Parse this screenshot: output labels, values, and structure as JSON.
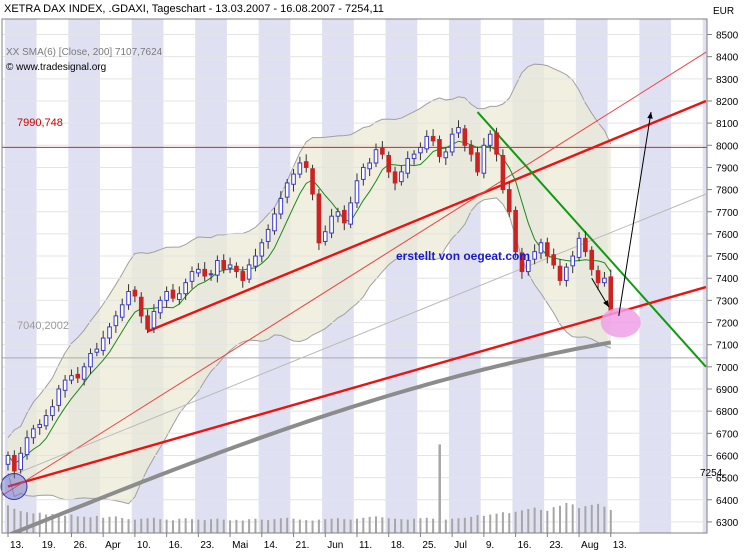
{
  "header": {
    "title": "XETRA DAX INDEX, .GDAXI, Tageschart - 13.03.2007 - 16.08.2007 - 7254,11",
    "indicator": "XX SMA(6) [Close, 200] 7107,7624",
    "copyright": "© www.tradesignal.org"
  },
  "axis": {
    "currency": "EUR",
    "y_ticks": [
      6300,
      6400,
      6500,
      6600,
      6700,
      6800,
      6900,
      7000,
      7100,
      7200,
      7300,
      7400,
      7500,
      7600,
      7700,
      7800,
      7900,
      8000,
      8100,
      8200,
      8300,
      8400,
      8500
    ],
    "y_tick_labels": [
      "6300",
      "6400",
      "6500",
      "6600",
      "6700",
      "6800",
      "6900",
      "7000",
      "7100",
      "7200",
      "7300",
      "7400",
      "7500",
      "7600",
      "7700",
      "7800",
      "7900",
      "8000",
      "8100",
      "8200",
      "8300",
      "8400",
      "8500"
    ],
    "ylim": [
      6250,
      8570
    ],
    "x_labels": [
      "13.",
      "19.",
      "26.",
      "Apr",
      "10.",
      "16.",
      "23.",
      "Mai",
      "14.",
      "21.",
      "Jun",
      "11.",
      "18.",
      "25.",
      "Jul",
      "9.",
      "16.",
      "23.",
      "Aug",
      "13."
    ],
    "price_tag": "7254,"
  },
  "annotations": {
    "hline_upper_label": "7990,748",
    "hline_upper_value": 7990.748,
    "hline_lower_label": "7040,2002",
    "hline_lower_value": 7040.2002,
    "watermark": "erstellt von oegeat.com"
  },
  "colors": {
    "background": "#ffffff",
    "stripe": "#dfe1f2",
    "bollinger_fill": "#ece9d6",
    "bollinger_line": "#a0a0a0",
    "sma_short": "#1a8a1a",
    "sma_long": "#8c8c8c",
    "candle_up": "#3a3acc",
    "candle_down": "#cc2222",
    "trend_red": "#ee1111",
    "trend_green": "#119911",
    "thin_red": "#ee4444",
    "thin_gray": "#bbbbbb",
    "volume": "#a6a6a6",
    "circle_blue": "#6666cc",
    "ellipse_pink": "#f0a0e8",
    "watermark": "#1a1acc"
  },
  "chart_data": {
    "type": "candlestick",
    "title": "XETRA DAX INDEX, .GDAXI, Tageschart - 13.03.2007 - 16.08.2007 - 7254,11",
    "ylabel": "EUR",
    "close": [
      6600,
      6530,
      6610,
      6680,
      6720,
      6740,
      6780,
      6820,
      6900,
      6940,
      6960,
      6950,
      7000,
      7060,
      7080,
      7130,
      7180,
      7230,
      7280,
      7340,
      7320,
      7230,
      7170,
      7250,
      7300,
      7340,
      7310,
      7330,
      7380,
      7430,
      7440,
      7410,
      7420,
      7480,
      7440,
      7460,
      7430,
      7390,
      7460,
      7500,
      7560,
      7620,
      7690,
      7760,
      7830,
      7870,
      7920,
      7900,
      7780,
      7560,
      7610,
      7680,
      7700,
      7650,
      7740,
      7840,
      7900,
      7920,
      7980,
      7960,
      7880,
      7830,
      7880,
      7940,
      7960,
      7990,
      8040,
      8020,
      7950,
      7970,
      8050,
      8080,
      8000,
      7960,
      7880,
      8000,
      8050,
      7960,
      7800,
      7700,
      7520,
      7430,
      7480,
      7520,
      7560,
      7500,
      7460,
      7390,
      7450,
      7500,
      7580,
      7520,
      7440,
      7380,
      7400,
      7254
    ],
    "volume": [
      120,
      105,
      95,
      90,
      85,
      88,
      80,
      82,
      78,
      75,
      80,
      72,
      70,
      68,
      74,
      66,
      70,
      72,
      65,
      60,
      58,
      62,
      64,
      66,
      60,
      58,
      55,
      62,
      64,
      60,
      58,
      56,
      60,
      62,
      58,
      55,
      57,
      54,
      60,
      62,
      58,
      56,
      60,
      64,
      66,
      62,
      58,
      56,
      54,
      58,
      60,
      62,
      64,
      60,
      58,
      62,
      66,
      70,
      72,
      68,
      64,
      62,
      60,
      58,
      62,
      64,
      66,
      62,
      60,
      58,
      62,
      64,
      66,
      70,
      78,
      74,
      80,
      84,
      90,
      86,
      92,
      98,
      104,
      110,
      100,
      96,
      112,
      118,
      130,
      124,
      108,
      116,
      122,
      126,
      114,
      100
    ],
    "volume_spikes": [
      {
        "index": 68,
        "value": 240
      }
    ],
    "sma_long_start": 6240,
    "sma_long_end": 7110,
    "bollinger_period": 20
  }
}
